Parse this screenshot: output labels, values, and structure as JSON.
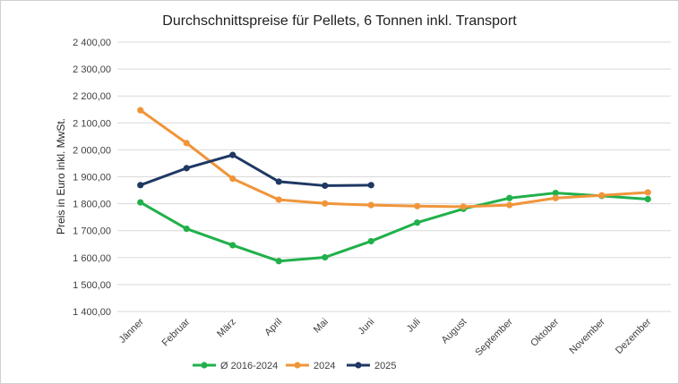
{
  "chart_data": {
    "type": "line",
    "title": "Durchschnittspreise für Pellets, 6 Tonnen inkl. Transport",
    "xlabel": "",
    "ylabel": "Preis in Euro inkl. MwSt.",
    "ylim": [
      1400,
      2400
    ],
    "yticks": [
      1400,
      1500,
      1600,
      1700,
      1800,
      1900,
      2000,
      2100,
      2200,
      2300,
      2400
    ],
    "ytick_labels": [
      "1 400,00",
      "1 500,00",
      "1 600,00",
      "1 700,00",
      "1 800,00",
      "1 900,00",
      "2 000,00",
      "2 100,00",
      "2 200,00",
      "2 300,00",
      "2 400,00"
    ],
    "categories": [
      "Jänner",
      "Februar",
      "März",
      "April",
      "Mai",
      "Juni",
      "Juli",
      "August",
      "September",
      "Oktober",
      "November",
      "Dezember"
    ],
    "grid": true,
    "legend_position": "bottom",
    "series": [
      {
        "name": "Ø 2016-2024",
        "color": "#21b04b",
        "values": [
          1805,
          1707,
          1646,
          1587,
          1601,
          1661,
          1730,
          1781,
          1821,
          1840,
          1829,
          1817
        ]
      },
      {
        "name": "2024",
        "color": "#f0953a",
        "values": [
          2147,
          2025,
          1893,
          1815,
          1801,
          1795,
          1791,
          1789,
          1795,
          1821,
          1831,
          1842
        ]
      },
      {
        "name": "2025",
        "color": "#1f3864",
        "values": [
          1869,
          1932,
          1981,
          1882,
          1867,
          1869,
          null,
          null,
          null,
          null,
          null,
          null
        ]
      }
    ]
  }
}
